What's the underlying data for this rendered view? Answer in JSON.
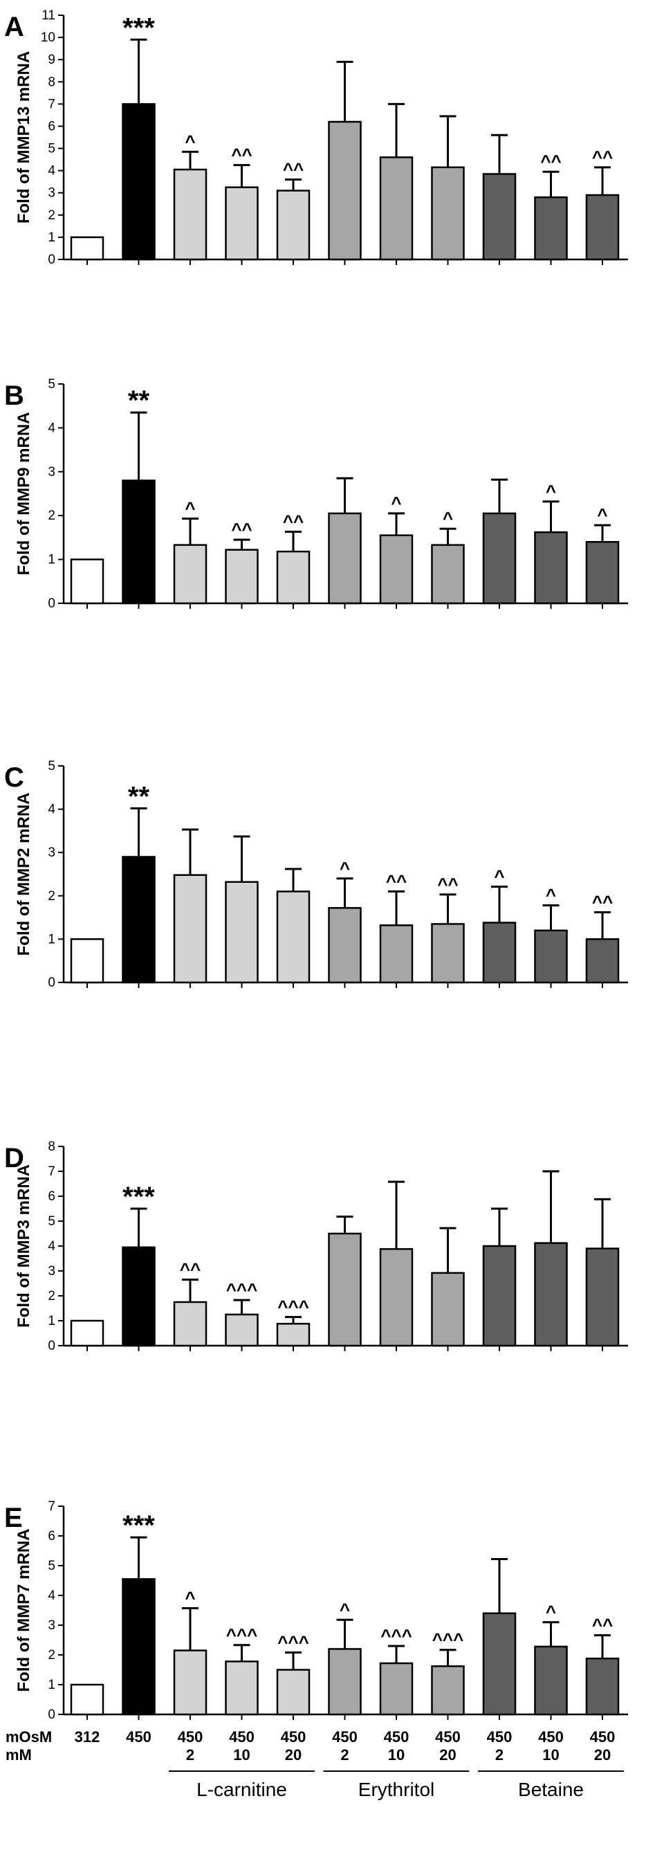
{
  "colors": {
    "control": "#ffffff",
    "hyperosmolar": "#000000",
    "l_carnitine": "#d3d3d3",
    "erythritol": "#a6a6a6",
    "betaine": "#5f5f5f"
  },
  "x_axis": {
    "row_labels": [
      "mOsM",
      "mM"
    ],
    "osm_labels": [
      "312",
      "450",
      "450",
      "450",
      "450",
      "450",
      "450",
      "450",
      "450",
      "450",
      "450"
    ],
    "mm_labels": [
      "",
      "",
      "2",
      "10",
      "20",
      "2",
      "10",
      "20",
      "2",
      "10",
      "20"
    ],
    "groups": [
      {
        "name": "L-carnitine",
        "start": 2,
        "end": 4
      },
      {
        "name": "Erythritol",
        "start": 5,
        "end": 7
      },
      {
        "name": "Betaine",
        "start": 8,
        "end": 10
      }
    ]
  },
  "chart_data": [
    {
      "type": "bar",
      "panel": "A",
      "ylabel": "Fold of MMP13 mRNA",
      "ylim": [
        0,
        11
      ],
      "yticks": [
        0,
        1,
        2,
        3,
        4,
        5,
        6,
        7,
        8,
        9,
        10,
        11
      ],
      "values": [
        1.0,
        7.0,
        4.05,
        3.25,
        3.1,
        6.2,
        4.6,
        4.15,
        3.85,
        2.8,
        2.9
      ],
      "errors": [
        0,
        2.9,
        0.8,
        1.0,
        0.5,
        2.7,
        2.4,
        2.3,
        1.75,
        1.15,
        1.25
      ],
      "annotations": [
        "",
        "***",
        "^",
        "^^",
        "^^",
        "",
        "",
        "",
        "",
        "^^",
        "^^"
      ]
    },
    {
      "type": "bar",
      "panel": "B",
      "ylabel": "Fold of MMP9 mRNA",
      "ylim": [
        0,
        5
      ],
      "yticks": [
        0,
        1,
        2,
        3,
        4,
        5
      ],
      "values": [
        1.0,
        2.8,
        1.33,
        1.22,
        1.18,
        2.05,
        1.55,
        1.33,
        2.05,
        1.62,
        1.4
      ],
      "errors": [
        0,
        1.55,
        0.6,
        0.23,
        0.45,
        0.8,
        0.5,
        0.37,
        0.77,
        0.7,
        0.38
      ],
      "annotations": [
        "",
        "**",
        "^",
        "^^",
        "^^",
        "",
        "^",
        "^",
        "",
        "^",
        "^"
      ]
    },
    {
      "type": "bar",
      "panel": "C",
      "ylabel": "Fold of MMP2 mRNA",
      "ylim": [
        0,
        5
      ],
      "yticks": [
        0,
        1,
        2,
        3,
        4,
        5
      ],
      "values": [
        1.0,
        2.9,
        2.48,
        2.32,
        2.1,
        1.72,
        1.32,
        1.35,
        1.38,
        1.2,
        1.0
      ],
      "errors": [
        0,
        1.12,
        1.05,
        1.05,
        0.52,
        0.68,
        0.78,
        0.68,
        0.83,
        0.58,
        0.62
      ],
      "annotations": [
        "",
        "**",
        "",
        "",
        "",
        "^",
        "^^",
        "^^",
        "^",
        "^",
        "^^"
      ]
    },
    {
      "type": "bar",
      "panel": "D",
      "ylabel": "Fold of MMP3 mRNA",
      "ylim": [
        0,
        8
      ],
      "yticks": [
        0,
        1,
        2,
        3,
        4,
        5,
        6,
        7,
        8
      ],
      "values": [
        1.0,
        3.95,
        1.75,
        1.25,
        0.88,
        4.5,
        3.88,
        2.92,
        4.0,
        4.12,
        3.9
      ],
      "errors": [
        0,
        1.55,
        0.9,
        0.58,
        0.27,
        0.68,
        2.7,
        1.8,
        1.5,
        2.88,
        1.98
      ],
      "annotations": [
        "",
        "***",
        "^^",
        "^^^",
        "^^^",
        "",
        "",
        "",
        "",
        "",
        ""
      ]
    },
    {
      "type": "bar",
      "panel": "E",
      "ylabel": "Fold of MMP7 mRNA",
      "ylim": [
        0,
        7
      ],
      "yticks": [
        0,
        1,
        2,
        3,
        4,
        5,
        6,
        7
      ],
      "values": [
        1.0,
        4.55,
        2.15,
        1.78,
        1.5,
        2.2,
        1.72,
        1.62,
        3.4,
        2.28,
        1.88
      ],
      "errors": [
        0,
        1.4,
        1.42,
        0.55,
        0.58,
        0.98,
        0.58,
        0.55,
        1.82,
        0.82,
        0.78
      ],
      "annotations": [
        "",
        "***",
        "^",
        "^^^",
        "^^^",
        "^",
        "^^^",
        "^^^",
        "",
        "^",
        "^^"
      ]
    }
  ]
}
